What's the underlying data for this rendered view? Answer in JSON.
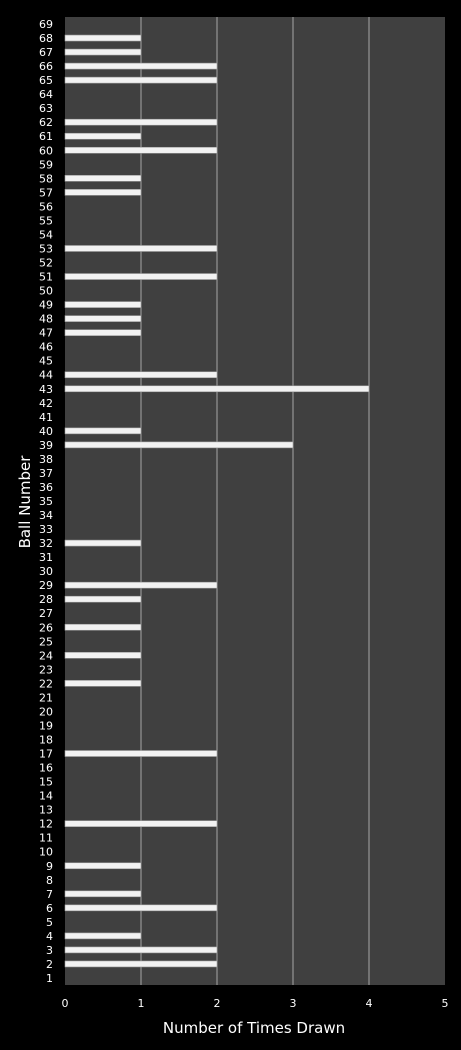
{
  "chart_data": {
    "type": "bar",
    "orientation": "horizontal",
    "title": "",
    "xlabel": "Number of Times Drawn",
    "ylabel": "Ball Number",
    "xlim": [
      0,
      5
    ],
    "xticks": [
      0,
      1,
      2,
      3,
      4,
      5
    ],
    "grid": "vertical",
    "categories": [
      "1",
      "2",
      "3",
      "4",
      "5",
      "6",
      "7",
      "8",
      "9",
      "10",
      "11",
      "12",
      "13",
      "14",
      "15",
      "16",
      "17",
      "18",
      "19",
      "20",
      "21",
      "22",
      "23",
      "24",
      "25",
      "26",
      "27",
      "28",
      "29",
      "30",
      "31",
      "32",
      "33",
      "34",
      "35",
      "36",
      "37",
      "38",
      "39",
      "40",
      "41",
      "42",
      "43",
      "44",
      "45",
      "46",
      "47",
      "48",
      "49",
      "50",
      "51",
      "52",
      "53",
      "54",
      "55",
      "56",
      "57",
      "58",
      "59",
      "60",
      "61",
      "62",
      "63",
      "64",
      "65",
      "66",
      "67",
      "68",
      "69"
    ],
    "values": [
      0,
      2,
      2,
      1,
      0,
      2,
      1,
      0,
      1,
      0,
      0,
      2,
      0,
      0,
      0,
      0,
      2,
      0,
      0,
      0,
      0,
      1,
      0,
      1,
      0,
      1,
      0,
      1,
      2,
      0,
      0,
      1,
      0,
      0,
      0,
      0,
      0,
      0,
      3,
      1,
      0,
      0,
      4,
      2,
      0,
      0,
      1,
      1,
      1,
      0,
      2,
      0,
      2,
      0,
      0,
      0,
      1,
      1,
      0,
      2,
      1,
      2,
      0,
      0,
      2,
      2,
      1,
      1,
      0
    ],
    "colors": {
      "background": "#000000",
      "plot_area": "#404040",
      "grid": "#a6a6a6",
      "bar": "#f2f2f2",
      "text": "#ffffff"
    }
  }
}
